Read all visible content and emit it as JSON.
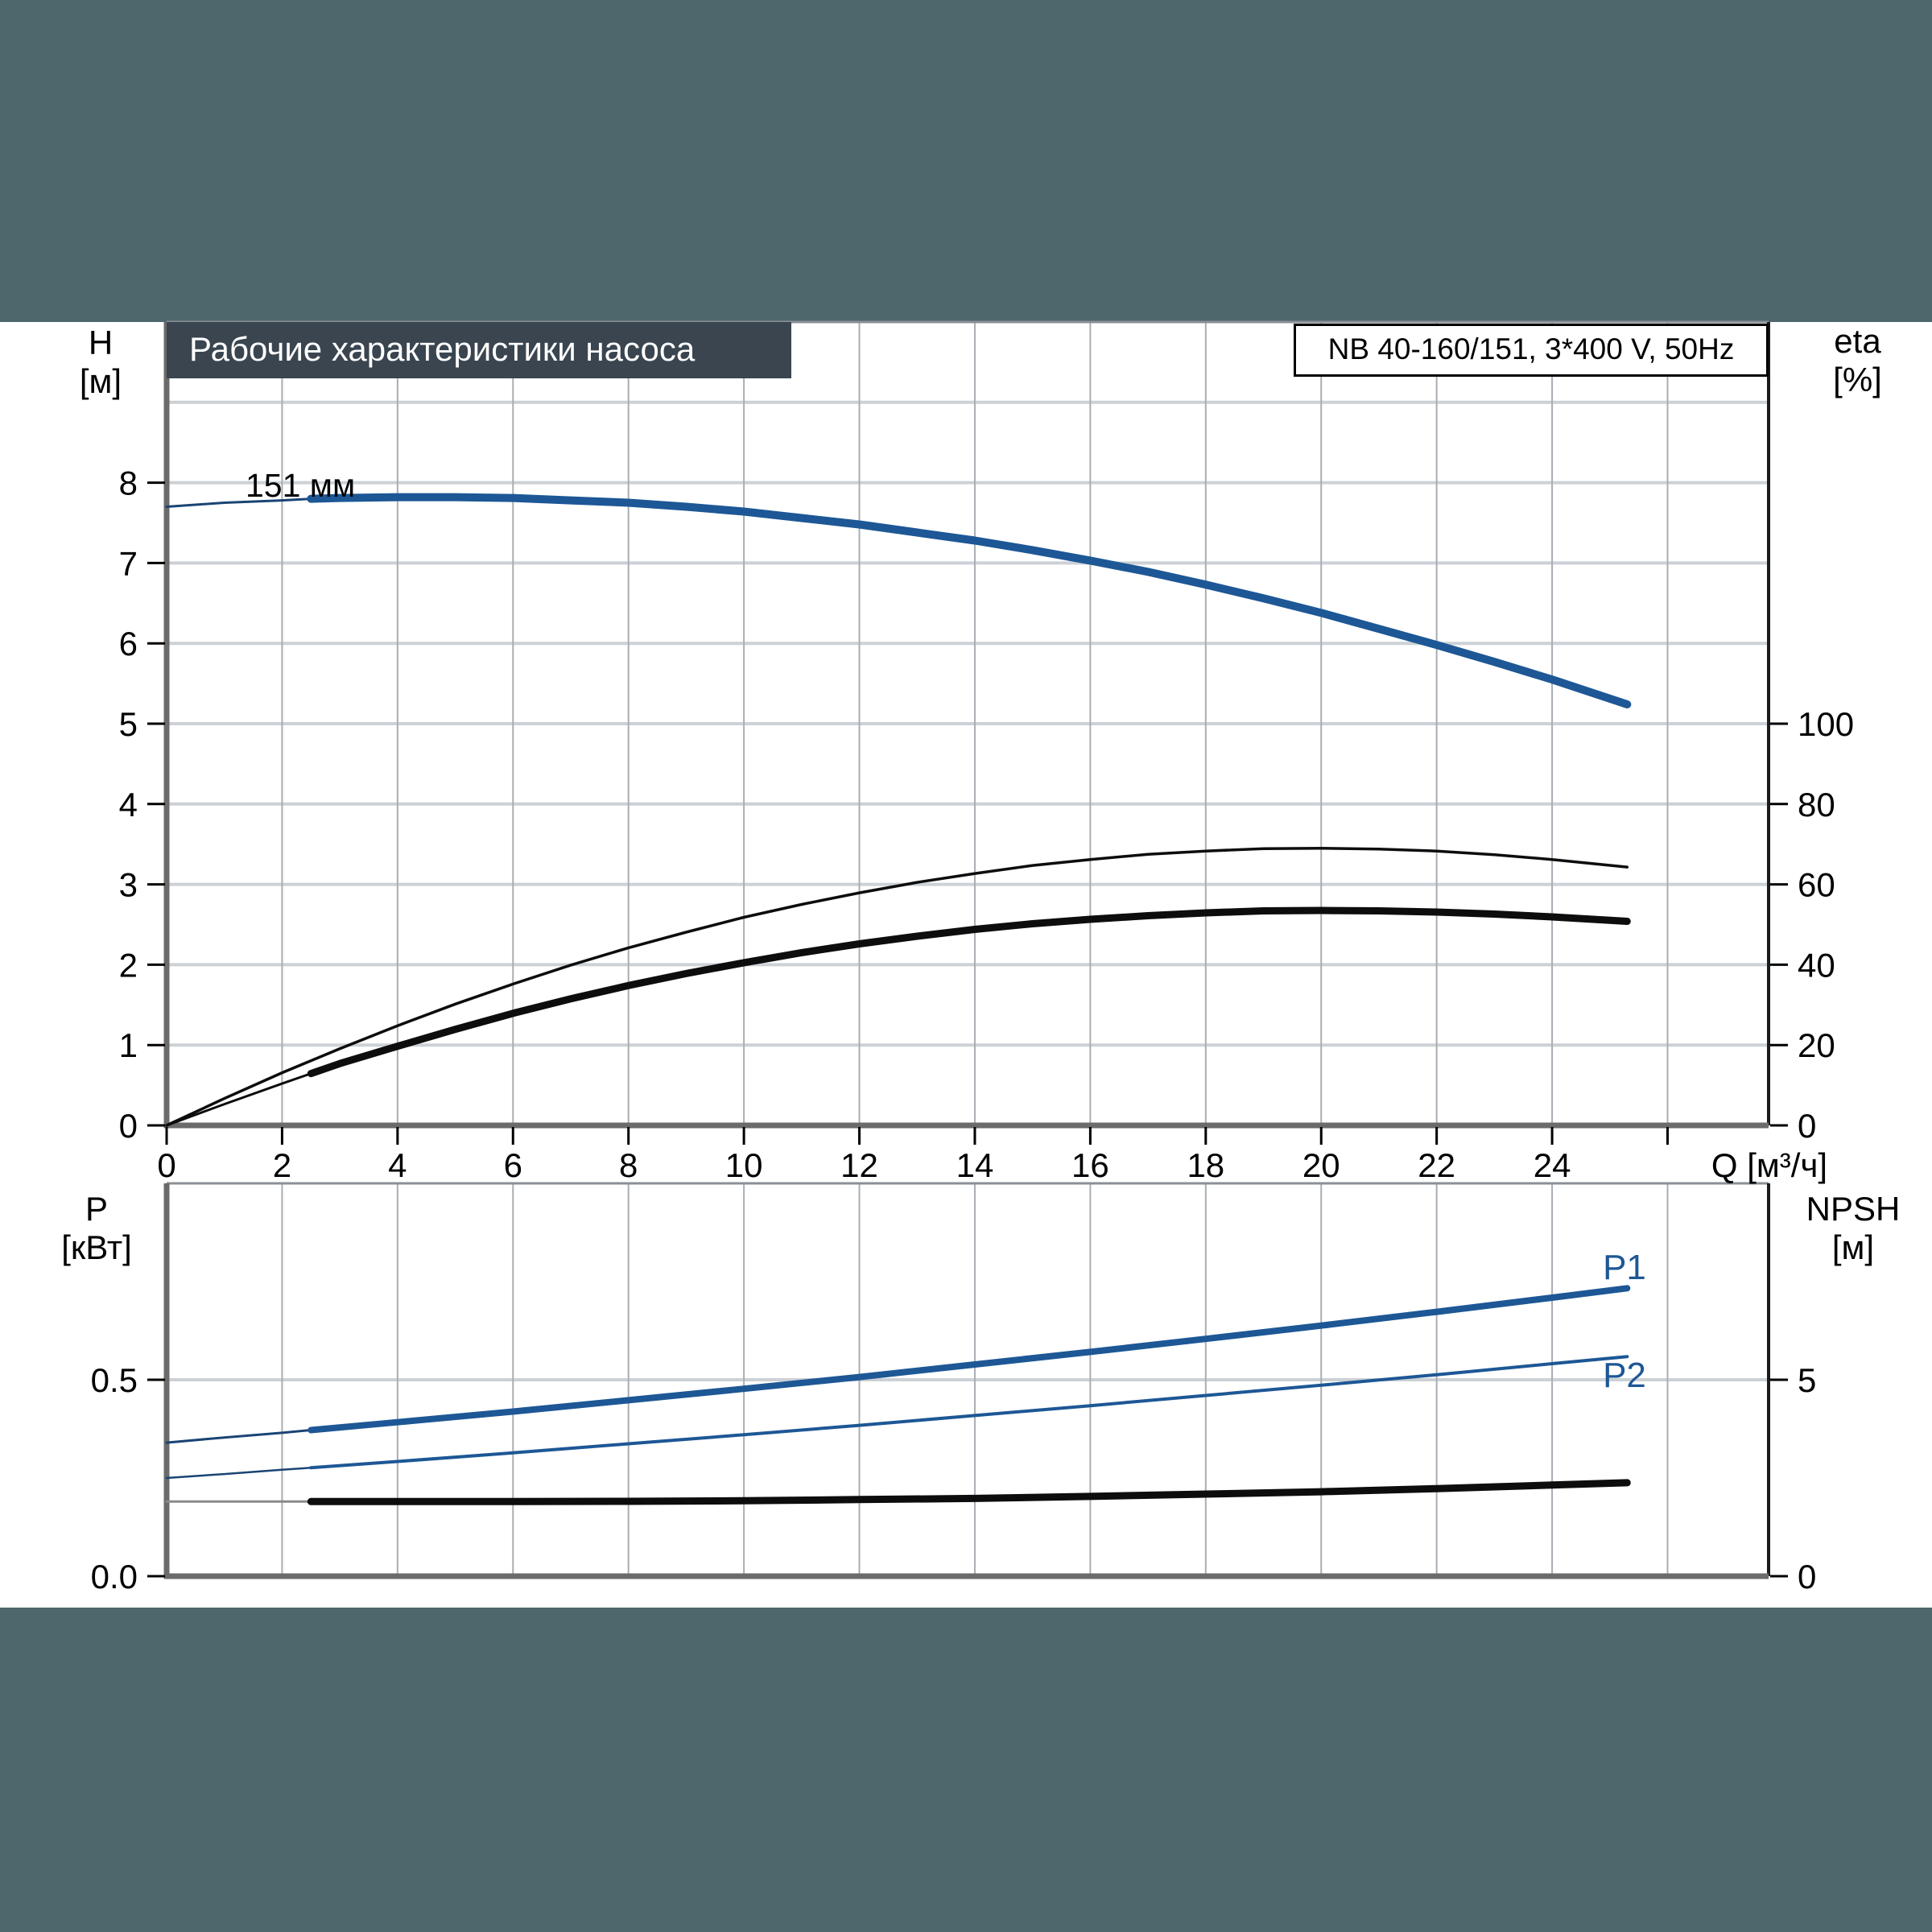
{
  "header": {
    "title": "Рабочие характеристики насоса",
    "model_box": "NB 40-160/151, 3*400 V, 50Hz"
  },
  "labels": {
    "h": "H",
    "h_unit": "[м]",
    "eta": "eta",
    "eta_unit": "[%]",
    "q": "Q [м³/ч]",
    "p": "P",
    "p_unit": "[кВт]",
    "npsh": "NPSH",
    "npsh_unit": "[м]",
    "p1": "P1",
    "p2": "P2",
    "impeller": "151 мм"
  },
  "colors": {
    "band": "#4e676d",
    "title_box": "#3a4550",
    "curve_blue": "#1d5795",
    "curve_blue_thin": "#1a4474",
    "curve_black": "#0d0d0d",
    "curve_gray_thin": "#8a8a8a",
    "grid_h": "#ccd1d6",
    "grid_v": "#a8aeb4",
    "axis_gray": "#6b6b6b",
    "axis_black": "#1a1a1a",
    "tick": "#000000"
  },
  "chart_data": [
    {
      "type": "line",
      "title": "Рабочие характеристики насоса",
      "xlabel": "Q [м³/ч]",
      "x_range": [
        0,
        27.75
      ],
      "x_tick_marks": [
        0,
        2,
        4,
        6,
        8,
        10,
        12,
        14,
        16,
        18,
        20,
        22,
        24,
        26
      ],
      "x_tick_labels": [
        [
          "0",
          0
        ],
        [
          "2",
          2
        ],
        [
          "4",
          4
        ],
        [
          "6",
          6
        ],
        [
          "8",
          8
        ],
        [
          "10",
          10
        ],
        [
          "12",
          12
        ],
        [
          "14",
          14
        ],
        [
          "16",
          16
        ],
        [
          "18",
          18
        ],
        [
          "20",
          20
        ],
        [
          "22",
          22
        ],
        [
          "24",
          24
        ]
      ],
      "left_axis": {
        "label": "H [м]",
        "top_value": 10,
        "ticks": [
          [
            "0",
            0
          ],
          [
            "1",
            1
          ],
          [
            "2",
            2
          ],
          [
            "3",
            3
          ],
          [
            "4",
            4
          ],
          [
            "5",
            5
          ],
          [
            "6",
            6
          ],
          [
            "7",
            7
          ],
          [
            "8",
            8
          ]
        ],
        "gridlines": [
          1,
          2,
          3,
          4,
          5,
          6,
          7,
          8,
          9
        ]
      },
      "right_axis": {
        "label": "eta [%]",
        "top_value": 200,
        "ticks": [
          [
            "0",
            0
          ],
          [
            "20",
            20
          ],
          [
            "40",
            40
          ],
          [
            "60",
            60
          ],
          [
            "80",
            80
          ],
          [
            "100",
            100
          ]
        ]
      },
      "series": [
        {
          "name": "head-curve-thin-start",
          "axis": "left",
          "color_key": "curve_blue_thin",
          "width": 3,
          "points": [
            [
              0,
              7.7
            ],
            [
              1,
              7.75
            ],
            [
              2,
              7.78
            ],
            [
              2.5,
              7.8
            ]
          ]
        },
        {
          "name": "head-curve-151mm",
          "axis": "left",
          "color_key": "curve_blue",
          "width": 10,
          "points": [
            [
              2.5,
              7.8
            ],
            [
              3,
              7.81
            ],
            [
              4,
              7.82
            ],
            [
              5,
              7.82
            ],
            [
              6,
              7.81
            ],
            [
              7,
              7.78
            ],
            [
              8,
              7.75
            ],
            [
              9,
              7.7
            ],
            [
              10,
              7.64
            ],
            [
              11,
              7.56
            ],
            [
              12,
              7.48
            ],
            [
              13,
              7.38
            ],
            [
              14,
              7.28
            ],
            [
              15,
              7.16
            ],
            [
              16,
              7.03
            ],
            [
              17,
              6.89
            ],
            [
              18,
              6.73
            ],
            [
              19,
              6.56
            ],
            [
              20,
              6.38
            ],
            [
              21,
              6.18
            ],
            [
              22,
              5.98
            ],
            [
              23,
              5.77
            ],
            [
              24,
              5.55
            ],
            [
              25.3,
              5.24
            ]
          ]
        },
        {
          "name": "eta-pump-curve",
          "axis": "right",
          "color_key": "curve_black",
          "width": 3.5,
          "points": [
            [
              0,
              0
            ],
            [
              1,
              6.7
            ],
            [
              2,
              13.1
            ],
            [
              3,
              19.1
            ],
            [
              4,
              24.8
            ],
            [
              5,
              30.2
            ],
            [
              6,
              35.2
            ],
            [
              7,
              39.9
            ],
            [
              8,
              44.2
            ],
            [
              9,
              48.1
            ],
            [
              10,
              51.8
            ],
            [
              11,
              55.0
            ],
            [
              12,
              57.9
            ],
            [
              13,
              60.5
            ],
            [
              14,
              62.7
            ],
            [
              15,
              64.7
            ],
            [
              16,
              66.2
            ],
            [
              17,
              67.5
            ],
            [
              18,
              68.3
            ],
            [
              19,
              68.9
            ],
            [
              20,
              69.0
            ],
            [
              21,
              68.8
            ],
            [
              22,
              68.3
            ],
            [
              23,
              67.4
            ],
            [
              24,
              66.2
            ],
            [
              25.3,
              64.3
            ]
          ]
        },
        {
          "name": "eta-pump-motor-thin-start",
          "axis": "right",
          "color_key": "curve_black",
          "width": 3,
          "points": [
            [
              0,
              0
            ],
            [
              1,
              5.3
            ],
            [
              2,
              10.4
            ],
            [
              2.5,
              12.9
            ]
          ]
        },
        {
          "name": "eta-pump-motor-curve",
          "axis": "right",
          "color_key": "curve_black",
          "width": 9,
          "points": [
            [
              2.5,
              12.9
            ],
            [
              3,
              15.4
            ],
            [
              4,
              19.7
            ],
            [
              5,
              23.9
            ],
            [
              6,
              27.9
            ],
            [
              7,
              31.5
            ],
            [
              8,
              34.8
            ],
            [
              9,
              37.8
            ],
            [
              10,
              40.5
            ],
            [
              11,
              43.0
            ],
            [
              12,
              45.2
            ],
            [
              13,
              47.1
            ],
            [
              14,
              48.8
            ],
            [
              15,
              50.2
            ],
            [
              16,
              51.3
            ],
            [
              17,
              52.2
            ],
            [
              18,
              52.9
            ],
            [
              19,
              53.4
            ],
            [
              20,
              53.5
            ],
            [
              21,
              53.4
            ],
            [
              22,
              53.1
            ],
            [
              23,
              52.6
            ],
            [
              24,
              51.9
            ],
            [
              25.3,
              50.8
            ]
          ]
        }
      ]
    },
    {
      "type": "line",
      "xlabel": "",
      "x_range": [
        0,
        27.75
      ],
      "x_tick_marks": [],
      "x_tick_labels": [],
      "left_axis": {
        "label": "P [кВт]",
        "top_value": 1.0,
        "ticks": [
          [
            "0.0",
            0.0
          ],
          [
            "0.5",
            0.5
          ]
        ],
        "gridlines": [
          0.5
        ]
      },
      "right_axis": {
        "label": "NPSH [м]",
        "top_value": 10,
        "ticks": [
          [
            "0",
            0
          ],
          [
            "5",
            5
          ]
        ]
      },
      "series": [
        {
          "name": "p1-thin-start",
          "axis": "left",
          "color_key": "curve_blue_thin",
          "width": 3,
          "points": [
            [
              0,
              0.34
            ],
            [
              1,
              0.353
            ],
            [
              2,
              0.365
            ],
            [
              2.5,
              0.372
            ]
          ]
        },
        {
          "name": "p1-curve",
          "axis": "left",
          "color_key": "curve_blue",
          "width": 8,
          "points": [
            [
              2.5,
              0.372
            ],
            [
              4,
              0.392
            ],
            [
              6,
              0.419
            ],
            [
              8,
              0.448
            ],
            [
              10,
              0.477
            ],
            [
              12,
              0.507
            ],
            [
              14,
              0.539
            ],
            [
              16,
              0.571
            ],
            [
              18,
              0.604
            ],
            [
              20,
              0.638
            ],
            [
              22,
              0.673
            ],
            [
              24,
              0.709
            ],
            [
              25.3,
              0.733
            ]
          ]
        },
        {
          "name": "p2-thin-start",
          "axis": "left",
          "color_key": "curve_blue_thin",
          "width": 2.5,
          "points": [
            [
              0,
              0.25
            ],
            [
              1,
              0.26
            ],
            [
              2,
              0.271
            ],
            [
              2.5,
              0.276
            ]
          ]
        },
        {
          "name": "p2-curve",
          "axis": "left",
          "color_key": "curve_blue",
          "width": 4,
          "points": [
            [
              2.5,
              0.276
            ],
            [
              4,
              0.292
            ],
            [
              6,
              0.314
            ],
            [
              8,
              0.337
            ],
            [
              10,
              0.36
            ],
            [
              12,
              0.384
            ],
            [
              14,
              0.409
            ],
            [
              16,
              0.434
            ],
            [
              18,
              0.46
            ],
            [
              20,
              0.486
            ],
            [
              22,
              0.513
            ],
            [
              24,
              0.541
            ],
            [
              25.3,
              0.559
            ]
          ]
        },
        {
          "name": "npsh-thin-start",
          "axis": "right",
          "color_key": "curve_gray_thin",
          "width": 3,
          "points": [
            [
              0,
              1.9
            ],
            [
              1,
              1.9
            ],
            [
              2,
              1.9
            ],
            [
              2.5,
              1.9
            ]
          ]
        },
        {
          "name": "npsh-curve",
          "axis": "right",
          "color_key": "curve_black",
          "width": 9,
          "points": [
            [
              2.5,
              1.9
            ],
            [
              4,
              1.9
            ],
            [
              6,
              1.9
            ],
            [
              8,
              1.905
            ],
            [
              10,
              1.92
            ],
            [
              12,
              1.95
            ],
            [
              14,
              1.98
            ],
            [
              16,
              2.03
            ],
            [
              18,
              2.09
            ],
            [
              20,
              2.15
            ],
            [
              22,
              2.23
            ],
            [
              24,
              2.32
            ],
            [
              25.3,
              2.38
            ]
          ]
        }
      ]
    }
  ]
}
